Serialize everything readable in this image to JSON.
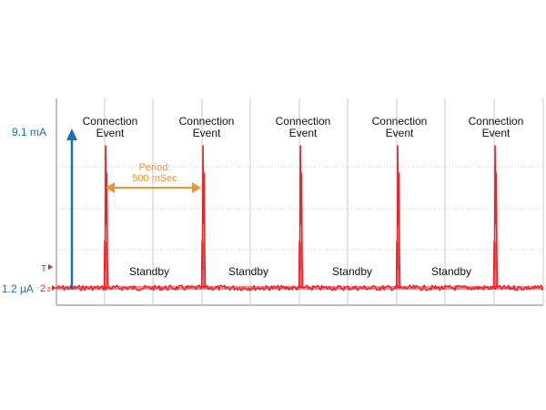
{
  "chart_data": {
    "type": "line",
    "title": "",
    "xlabel": "",
    "ylabel": "",
    "x_unit": "mSec",
    "xlim": [
      0,
      2500
    ],
    "peak_label": "9.1 mA",
    "baseline_label": "1.2 µA",
    "peak_current_mA": 9.1,
    "baseline_current_uA": 1.2,
    "period_ms": 500,
    "event_times_ms": [
      255,
      755,
      1255,
      1755,
      2255
    ],
    "events": [
      {
        "line1": "Connection",
        "line2": "Event"
      },
      {
        "line1": "Connection",
        "line2": "Event"
      },
      {
        "line1": "Connection",
        "line2": "Event"
      },
      {
        "line1": "Connection",
        "line2": "Event"
      },
      {
        "line1": "Connection",
        "line2": "Event"
      }
    ],
    "standby_labels": [
      "Standby",
      "Standby",
      "Standby",
      "Standby"
    ],
    "period_annotation": {
      "line1": "Period:",
      "line2": "500 mSec"
    },
    "channel_marker": "2",
    "trigger_marker": "T",
    "grid": true,
    "colors": {
      "trace": "#e8262a",
      "axis_arrow": "#1f6fb5",
      "value_labels": "#1f6fb5",
      "period": "#f0922e",
      "grid": "#c8c8c8",
      "text": "#111111"
    }
  }
}
